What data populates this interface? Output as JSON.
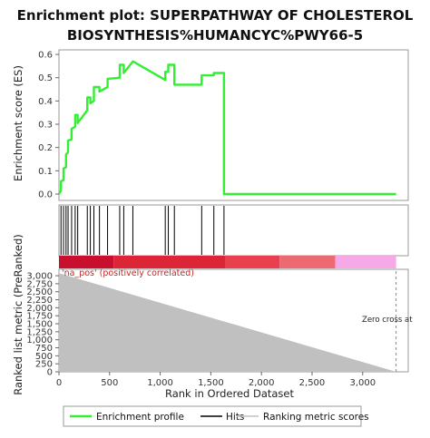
{
  "chart_data": {
    "type": "line",
    "title_line1": "Enrichment plot: SUPERPATHWAY OF CHOLESTEROL",
    "title_line2": "BIOSYNTHESIS%HUMANCYC%PWY66-5",
    "top_panel": {
      "ylabel": "Enrichment score (ES)",
      "ylim": [
        0,
        0.6
      ],
      "yticks": [
        "0.0",
        "0.1",
        "0.2",
        "0.3",
        "0.4",
        "0.5",
        "0.6"
      ],
      "series": [
        {
          "name": "Enrichment profile",
          "color": "#33ee33",
          "x": [
            0,
            20,
            20,
            45,
            45,
            70,
            70,
            90,
            90,
            125,
            125,
            160,
            160,
            185,
            185,
            280,
            280,
            310,
            310,
            345,
            345,
            400,
            400,
            480,
            480,
            600,
            600,
            640,
            640,
            730,
            730,
            1050,
            1050,
            1080,
            1080,
            1140,
            1140,
            1410,
            1410,
            1530,
            1530,
            1630,
            1630,
            3330
          ],
          "y": [
            0.0,
            0.015,
            0.055,
            0.06,
            0.11,
            0.115,
            0.17,
            0.18,
            0.23,
            0.235,
            0.28,
            0.29,
            0.34,
            0.34,
            0.305,
            0.36,
            0.415,
            0.415,
            0.39,
            0.4,
            0.46,
            0.46,
            0.44,
            0.46,
            0.495,
            0.5,
            0.555,
            0.555,
            0.52,
            0.57,
            0.57,
            0.49,
            0.525,
            0.525,
            0.555,
            0.555,
            0.47,
            0.47,
            0.51,
            0.51,
            0.52,
            0.52,
            0.0,
            0.0
          ]
        }
      ]
    },
    "hits": [
      20,
      45,
      70,
      90,
      125,
      160,
      185,
      280,
      310,
      345,
      400,
      480,
      600,
      640,
      730,
      1050,
      1080,
      1140,
      1410,
      1530,
      1630
    ],
    "heat_bar": {
      "segments": [
        {
          "from": 0,
          "to": 540,
          "color": "#c8102e"
        },
        {
          "from": 540,
          "to": 1640,
          "color": "#dc2638"
        },
        {
          "from": 1640,
          "to": 2180,
          "color": "#e8404f"
        },
        {
          "from": 2180,
          "to": 2730,
          "color": "#ee6a72"
        },
        {
          "from": 2730,
          "to": 3330,
          "color": "#f7a8e6"
        }
      ],
      "label": "'na_pos' (positively correlated)"
    },
    "bottom_panel": {
      "ylabel": "Ranked list metric (PreRanked)",
      "ylim": [
        0,
        3200
      ],
      "yticks": [
        "0",
        "250",
        "500",
        "750",
        "1,000",
        "1,250",
        "1,500",
        "1,750",
        "2,000",
        "2,250",
        "2,500",
        "2,750",
        "3,000"
      ],
      "ytick_values": [
        0,
        250,
        500,
        750,
        1000,
        1250,
        1500,
        1750,
        2000,
        2250,
        2500,
        2750,
        3000
      ],
      "metric_start": 3080,
      "metric_end": 0,
      "color": "#c0c0c0",
      "zero_cross_label": "Zero cross at",
      "zero_cross_x": 3330
    },
    "xlabel": "Rank in Ordered Dataset",
    "xlim": [
      0,
      3450
    ],
    "xticks": [
      "0",
      "500",
      "1,000",
      "1,500",
      "2,000",
      "2,500",
      "3,000"
    ],
    "xtick_values": [
      0,
      500,
      1000,
      1500,
      2000,
      2500,
      3000
    ],
    "legend": {
      "placement": "bottom",
      "entries": [
        {
          "label": "Enrichment profile",
          "color": "#33ee33"
        },
        {
          "label": "Hits",
          "color": "#000000"
        },
        {
          "label": "Ranking metric scores",
          "color": "#c0c0c0"
        }
      ]
    }
  }
}
